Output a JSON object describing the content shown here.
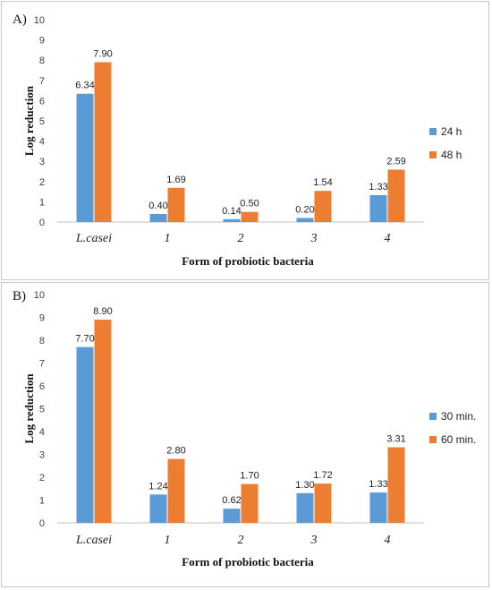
{
  "chart_data": [
    {
      "type": "bar",
      "panel_label": "A)",
      "categories": [
        "L.casei",
        "1",
        "2",
        "3",
        "4"
      ],
      "series": [
        {
          "name": "24 h",
          "color": "#5b9bd5",
          "values": [
            6.34,
            0.4,
            0.14,
            0.2,
            1.33
          ],
          "labels": [
            "6.34",
            "0.40",
            "0.14",
            "0.20",
            "1.33"
          ]
        },
        {
          "name": "48 h",
          "color": "#ed7d31",
          "values": [
            7.9,
            1.69,
            0.5,
            1.54,
            2.59
          ],
          "labels": [
            "7.90",
            "1.69",
            "0.50",
            "1.54",
            "2.59"
          ]
        }
      ],
      "xlabel": "Form of probiotic bacteria",
      "ylabel": "Log reduction",
      "ylim": [
        0,
        10
      ],
      "yticks": [
        "0",
        "1",
        "2",
        "3",
        "4",
        "5",
        "6",
        "7",
        "8",
        "9",
        "10"
      ],
      "grid": false,
      "legend_position": "right"
    },
    {
      "type": "bar",
      "panel_label": "B)",
      "categories": [
        "L.casei",
        "1",
        "2",
        "3",
        "4"
      ],
      "series": [
        {
          "name": "30 min.",
          "color": "#5b9bd5",
          "values": [
            7.7,
            1.24,
            0.62,
            1.3,
            1.33
          ],
          "labels": [
            "7.70",
            "1.24",
            "0.62",
            "1.30",
            "1.33"
          ]
        },
        {
          "name": "60 min.",
          "color": "#ed7d31",
          "values": [
            8.9,
            2.8,
            1.7,
            1.72,
            3.31
          ],
          "labels": [
            "8.90",
            "2.80",
            "1.70",
            "1.72",
            "3.31"
          ]
        }
      ],
      "xlabel": "Form of probiotic bacteria",
      "ylabel": "Log reduction",
      "ylim": [
        0,
        10
      ],
      "yticks": [
        "0",
        "1",
        "2",
        "3",
        "4",
        "5",
        "6",
        "7",
        "8",
        "9",
        "10"
      ],
      "grid": false,
      "legend_position": "right"
    }
  ]
}
